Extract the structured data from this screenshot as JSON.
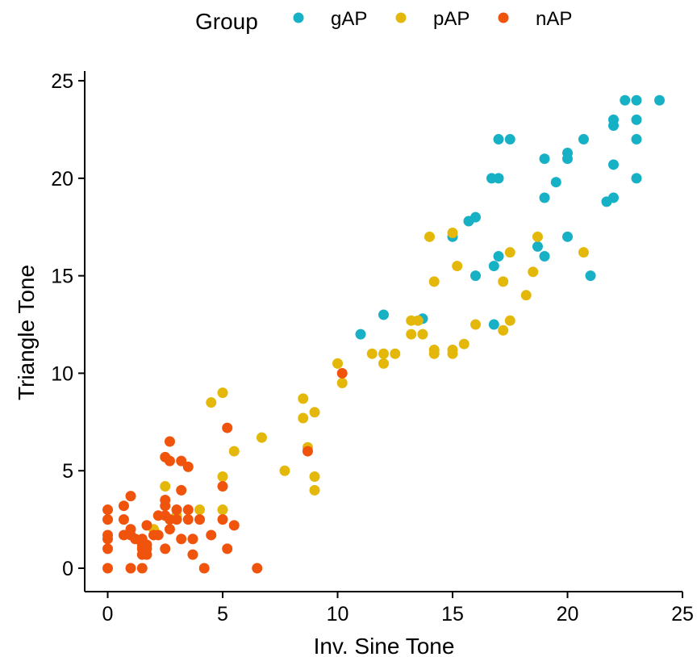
{
  "chart_data": {
    "type": "scatter",
    "title": "",
    "xlabel": "Inv. Sine Tone",
    "ylabel": "Triangle Tone",
    "xlim": [
      -1,
      25
    ],
    "ylim": [
      -1.2,
      25.5
    ],
    "xticks": [
      "0",
      "5",
      "10",
      "15",
      "20",
      "25"
    ],
    "yticks": [
      "0",
      "5",
      "10",
      "15",
      "20",
      "25"
    ],
    "grid": false,
    "legend": {
      "title": "Group",
      "position": "top"
    },
    "series": [
      {
        "name": "gAP",
        "color": "#17B1C6",
        "points": [
          [
            22.5,
            24
          ],
          [
            23,
            24
          ],
          [
            24,
            24
          ],
          [
            22,
            23
          ],
          [
            23,
            23
          ],
          [
            22,
            22.7
          ],
          [
            17,
            22
          ],
          [
            17.5,
            22
          ],
          [
            20.7,
            22
          ],
          [
            23,
            22
          ],
          [
            20,
            21.3
          ],
          [
            19,
            21
          ],
          [
            20,
            21
          ],
          [
            16.7,
            20
          ],
          [
            17,
            20
          ],
          [
            23,
            20
          ],
          [
            19.5,
            19.8
          ],
          [
            22,
            20.7
          ],
          [
            19,
            19
          ],
          [
            22,
            19
          ],
          [
            21.7,
            18.8
          ],
          [
            16,
            18
          ],
          [
            15.7,
            17.8
          ],
          [
            15,
            17
          ],
          [
            20,
            17
          ],
          [
            18.7,
            16.5
          ],
          [
            17,
            16
          ],
          [
            19,
            16
          ],
          [
            16.8,
            15.5
          ],
          [
            16,
            15
          ],
          [
            21,
            15
          ],
          [
            13.7,
            12.8
          ],
          [
            12,
            13
          ],
          [
            16.8,
            12.5
          ],
          [
            11,
            12
          ]
        ]
      },
      {
        "name": "pAP",
        "color": "#E4B80B",
        "points": [
          [
            15,
            17.2
          ],
          [
            14,
            17
          ],
          [
            18.7,
            17
          ],
          [
            17.5,
            16.2
          ],
          [
            20.7,
            16.2
          ],
          [
            15.2,
            15.5
          ],
          [
            18.5,
            15.2
          ],
          [
            14.2,
            14.7
          ],
          [
            17.2,
            14.7
          ],
          [
            18.2,
            14
          ],
          [
            13.2,
            12.7
          ],
          [
            13.5,
            12.7
          ],
          [
            16,
            12.5
          ],
          [
            17.5,
            12.7
          ],
          [
            17.2,
            12.2
          ],
          [
            13.2,
            12
          ],
          [
            13.7,
            12
          ],
          [
            14.2,
            11.2
          ],
          [
            14.2,
            11
          ],
          [
            15,
            11.2
          ],
          [
            15,
            11
          ],
          [
            15.5,
            11.5
          ],
          [
            11.5,
            11
          ],
          [
            12,
            11
          ],
          [
            12.5,
            11
          ],
          [
            10,
            10.5
          ],
          [
            12,
            10.5
          ],
          [
            10.2,
            9.5
          ],
          [
            5,
            9
          ],
          [
            4.5,
            8.5
          ],
          [
            8.5,
            8.7
          ],
          [
            9,
            8
          ],
          [
            8.5,
            7.7
          ],
          [
            6.7,
            6.7
          ],
          [
            8.7,
            6.2
          ],
          [
            5.5,
            6
          ],
          [
            7.7,
            5
          ],
          [
            5,
            4.7
          ],
          [
            9,
            4.7
          ],
          [
            2.5,
            4.2
          ],
          [
            9,
            4
          ],
          [
            4,
            3
          ],
          [
            5,
            3
          ],
          [
            2,
            2
          ],
          [
            3,
            2.7
          ]
        ]
      },
      {
        "name": "nAP",
        "color": "#F0530C",
        "points": [
          [
            10.2,
            10
          ],
          [
            5.2,
            7.2
          ],
          [
            2.7,
            6.5
          ],
          [
            8.7,
            6
          ],
          [
            2.5,
            5.7
          ],
          [
            2.7,
            5.5
          ],
          [
            3.2,
            5.5
          ],
          [
            3.5,
            5.2
          ],
          [
            5,
            4.2
          ],
          [
            1,
            3.7
          ],
          [
            3.2,
            4
          ],
          [
            0.7,
            3.2
          ],
          [
            0,
            3
          ],
          [
            2.5,
            3.5
          ],
          [
            2.5,
            3.2
          ],
          [
            3,
            3
          ],
          [
            3.5,
            3
          ],
          [
            0.7,
            2.5
          ],
          [
            0,
            2.5
          ],
          [
            2.2,
            2.7
          ],
          [
            2.5,
            2.7
          ],
          [
            2.7,
            2.5
          ],
          [
            3,
            2.5
          ],
          [
            3.5,
            2.5
          ],
          [
            4,
            2.5
          ],
          [
            5,
            2.5
          ],
          [
            1.7,
            2.2
          ],
          [
            5.5,
            2.2
          ],
          [
            1,
            2
          ],
          [
            2.7,
            2
          ],
          [
            0,
            1.7
          ],
          [
            0.7,
            1.7
          ],
          [
            1,
            1.7
          ],
          [
            2,
            1.7
          ],
          [
            2.2,
            1.7
          ],
          [
            0,
            1.5
          ],
          [
            1.2,
            1.5
          ],
          [
            1.5,
            1.5
          ],
          [
            3.2,
            1.5
          ],
          [
            3.7,
            1.5
          ],
          [
            4.5,
            1.7
          ],
          [
            1.5,
            1.2
          ],
          [
            1.7,
            1.2
          ],
          [
            0,
            1
          ],
          [
            1.5,
            1
          ],
          [
            1.7,
            1
          ],
          [
            2.5,
            1
          ],
          [
            5.2,
            1
          ],
          [
            1.5,
            0.7
          ],
          [
            1.7,
            0.7
          ],
          [
            3.7,
            0.7
          ],
          [
            0,
            0
          ],
          [
            1,
            0
          ],
          [
            1.5,
            0
          ],
          [
            4.2,
            0
          ],
          [
            6.5,
            0
          ]
        ]
      }
    ]
  }
}
